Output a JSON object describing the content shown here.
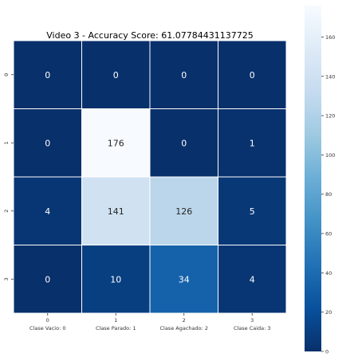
{
  "chart_data": {
    "type": "heatmap",
    "title": "Video 3 - Accuracy Score: 61.07784431137725",
    "x_tick_labels": [
      "0",
      "1",
      "2",
      "3"
    ],
    "x_class_labels": [
      "Clase Vacio: 0",
      "Clase Parado: 1",
      "Clase Agachado: 2",
      "Clase Caida: 3"
    ],
    "y_tick_labels": [
      "0",
      "1",
      "2",
      "3"
    ],
    "values": [
      [
        0,
        0,
        0,
        0
      ],
      [
        0,
        176,
        0,
        1
      ],
      [
        4,
        141,
        126,
        5
      ],
      [
        0,
        10,
        34,
        4
      ]
    ],
    "colorbar": {
      "min": 0,
      "max": 176,
      "ticks": [
        0,
        20,
        40,
        60,
        80,
        100,
        120,
        140,
        160
      ],
      "colormap": "Blues_r"
    },
    "grid": true
  }
}
